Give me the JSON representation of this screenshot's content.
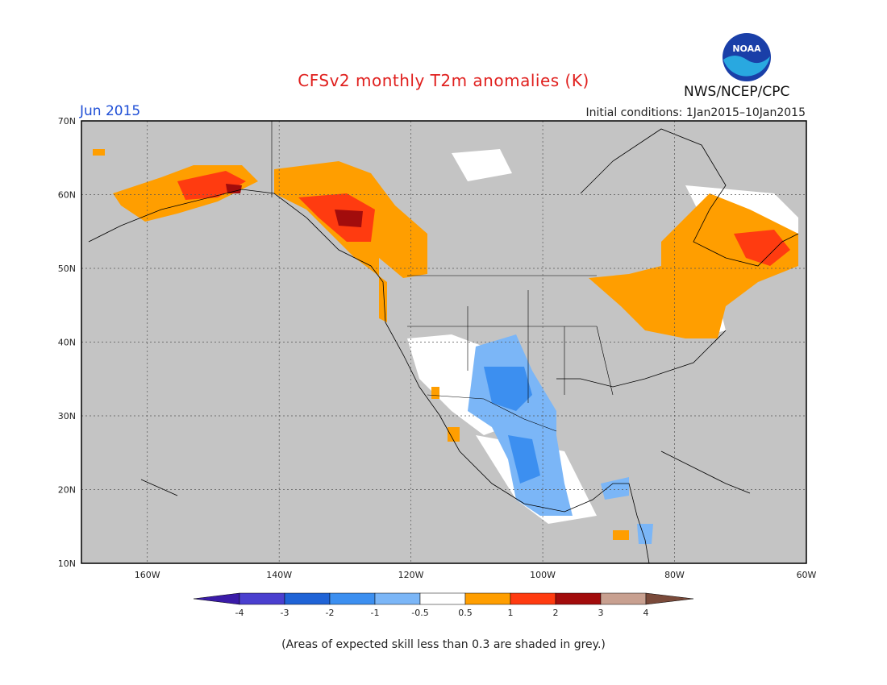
{
  "title": "CFSv2 monthly T2m anomalies (K)",
  "month": "Jun 2015",
  "initial_conditions": "Initial conditions: 1Jan2015–10Jan2015",
  "agency": "NWS/NCEP/CPC",
  "logo_text": "NOAA",
  "footnote": "(Areas of expected skill less than 0.3 are shaded in grey.)",
  "map": {
    "lat_labels": [
      "70N",
      "60N",
      "50N",
      "40N",
      "30N",
      "20N",
      "10N"
    ],
    "lon_labels": [
      "160W",
      "140W",
      "120W",
      "100W",
      "80W",
      "60W"
    ],
    "background_color": "#c4c4c4"
  },
  "colorbar": {
    "ticks": [
      "-4",
      "-3",
      "-2",
      "-1",
      "-0.5",
      "0.5",
      "1",
      "2",
      "3",
      "4"
    ],
    "colors": [
      "#3a1ba8",
      "#4a3fcf",
      "#1f63d6",
      "#3c8ff0",
      "#7bb6f7",
      "#ffffff",
      "#ff9e00",
      "#ff3b10",
      "#a20c0c",
      "#c8a090",
      "#7a4a3a"
    ]
  }
}
